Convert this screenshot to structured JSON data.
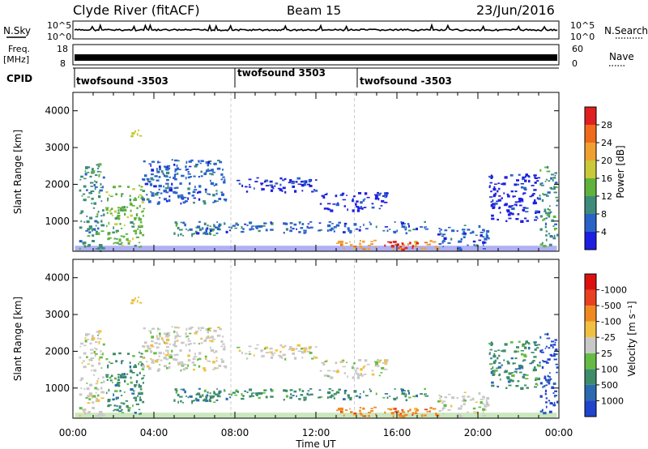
{
  "header": {
    "station": "Clyde River (fitACF)",
    "beam": "Beam 15",
    "date": "23/Jun/2016"
  },
  "strips": {
    "nsky_label": "N.Sky",
    "nsky_ticks": [
      "10^5",
      "10^0"
    ],
    "nsearch_label": "N.Search",
    "nsearch_ticks": [
      "10^5",
      "10^0"
    ],
    "freq_label_1": "Freq.",
    "freq_label_2": "[MHz]",
    "freq_ticks": [
      "18",
      "8"
    ],
    "nave_label": "Nave",
    "nave_ticks": [
      "60",
      "0"
    ],
    "cpid_label": "CPID",
    "cpid_segments": [
      "twofsound -3503",
      "twofsound 3503",
      "twofsound -3503"
    ]
  },
  "chart_data": [
    {
      "type": "heatmap",
      "name": "power-panel",
      "ylabel": "Slant Range [km]",
      "xlabel": "Time UT",
      "xticks": [
        "00:00",
        "04:00",
        "08:00",
        "12:00",
        "16:00",
        "20:00",
        "00:00"
      ],
      "yticks": [
        "1000",
        "2000",
        "3000",
        "4000"
      ],
      "xlim_hours": [
        0,
        24
      ],
      "ylim_km": [
        180,
        4500
      ],
      "colorbar": {
        "label": "Power [dB]",
        "ticks": [
          "4",
          "8",
          "12",
          "16",
          "20",
          "24",
          "28"
        ],
        "colors": [
          "#1e1ee0",
          "#2a63c8",
          "#3d8c7a",
          "#5fb33c",
          "#c9c93a",
          "#f0a030",
          "#f06a1e",
          "#e02020"
        ]
      },
      "regions": [
        {
          "t0": 0.3,
          "t1": 1.5,
          "r0": 200,
          "r1": 2600,
          "v": 2
        },
        {
          "t0": 1.6,
          "t1": 3.5,
          "r0": 300,
          "r1": 2000,
          "v": 3
        },
        {
          "t0": 2.8,
          "t1": 3.3,
          "r0": 3300,
          "r1": 3500,
          "v": 4
        },
        {
          "t0": 3.3,
          "t1": 7.5,
          "r0": 1500,
          "r1": 2700,
          "v": 1
        },
        {
          "t0": 4.8,
          "t1": 7.5,
          "r0": 600,
          "r1": 1000,
          "v": 2
        },
        {
          "t0": 8.0,
          "t1": 12.0,
          "r0": 1800,
          "r1": 2200,
          "v": 0
        },
        {
          "t0": 12.0,
          "t1": 15.5,
          "r0": 1300,
          "r1": 1800,
          "v": 0
        },
        {
          "t0": 6.0,
          "t1": 17.5,
          "r0": 700,
          "r1": 1000,
          "v": 1
        },
        {
          "t0": 13.0,
          "t1": 18.0,
          "r0": 250,
          "r1": 500,
          "v": 5
        },
        {
          "t0": 15.2,
          "t1": 17.0,
          "r0": 250,
          "r1": 500,
          "v": 7
        },
        {
          "t0": 18.0,
          "t1": 20.5,
          "r0": 250,
          "r1": 900,
          "v": 1
        },
        {
          "t0": 20.5,
          "t1": 23.0,
          "r0": 1000,
          "r1": 2300,
          "v": 0
        },
        {
          "t0": 23.0,
          "t1": 23.9,
          "r0": 300,
          "r1": 2500,
          "v": 2
        }
      ]
    },
    {
      "type": "heatmap",
      "name": "velocity-panel",
      "ylabel": "Slant Range [km]",
      "xlabel": "Time UT",
      "xticks": [
        "00:00",
        "04:00",
        "08:00",
        "12:00",
        "16:00",
        "20:00",
        "00:00"
      ],
      "yticks": [
        "1000",
        "2000",
        "3000",
        "4000"
      ],
      "xlim_hours": [
        0,
        24
      ],
      "ylim_km": [
        180,
        4500
      ],
      "colorbar": {
        "label": "Velocity [m s⁻¹]",
        "ticks": [
          "1000",
          "500",
          "100",
          "25",
          "-25",
          "-100",
          "-500",
          "-1000"
        ],
        "colors": [
          "#2244cc",
          "#2a6ab0",
          "#3d8c6a",
          "#66bb44",
          "#c8c8c8",
          "#f0c040",
          "#f08a20",
          "#e84020",
          "#dd1010"
        ]
      },
      "regions": [
        {
          "t0": 0.3,
          "t1": 1.5,
          "r0": 200,
          "r1": 2600,
          "v": 4
        },
        {
          "t0": 1.6,
          "t1": 3.5,
          "r0": 300,
          "r1": 2000,
          "v": 2
        },
        {
          "t0": 2.8,
          "t1": 3.3,
          "r0": 3300,
          "r1": 3500,
          "v": 5
        },
        {
          "t0": 3.3,
          "t1": 7.5,
          "r0": 1500,
          "r1": 2700,
          "v": 4
        },
        {
          "t0": 4.8,
          "t1": 7.5,
          "r0": 600,
          "r1": 1000,
          "v": 2
        },
        {
          "t0": 8.0,
          "t1": 12.0,
          "r0": 1800,
          "r1": 2200,
          "v": 4
        },
        {
          "t0": 12.0,
          "t1": 15.5,
          "r0": 1300,
          "r1": 1800,
          "v": 4
        },
        {
          "t0": 6.0,
          "t1": 17.5,
          "r0": 700,
          "r1": 1000,
          "v": 2
        },
        {
          "t0": 13.0,
          "t1": 18.0,
          "r0": 250,
          "r1": 500,
          "v": 6
        },
        {
          "t0": 15.2,
          "t1": 17.0,
          "r0": 250,
          "r1": 500,
          "v": 6
        },
        {
          "t0": 18.0,
          "t1": 20.5,
          "r0": 250,
          "r1": 900,
          "v": 4
        },
        {
          "t0": 20.5,
          "t1": 23.0,
          "r0": 1000,
          "r1": 2300,
          "v": 2
        },
        {
          "t0": 23.0,
          "t1": 23.9,
          "r0": 300,
          "r1": 2500,
          "v": 0
        }
      ]
    }
  ]
}
